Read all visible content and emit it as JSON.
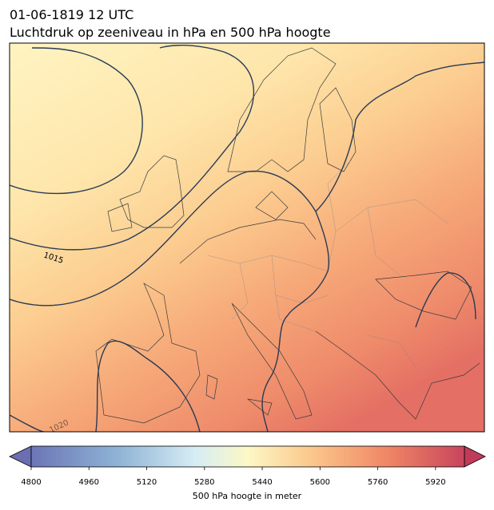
{
  "header": {
    "time": "01-06-1819 12 UTC",
    "title": "Luchtdruk op zeeniveau in hPa en 500 hPa hoogte"
  },
  "map": {
    "contour_labels": [
      "1015",
      "1020"
    ]
  },
  "colorbar": {
    "range": [
      4800,
      6000
    ],
    "ticks": [
      4800,
      4960,
      5120,
      5280,
      5440,
      5600,
      5760,
      5920
    ],
    "label": "500 hPa hoogte in meter"
  }
}
